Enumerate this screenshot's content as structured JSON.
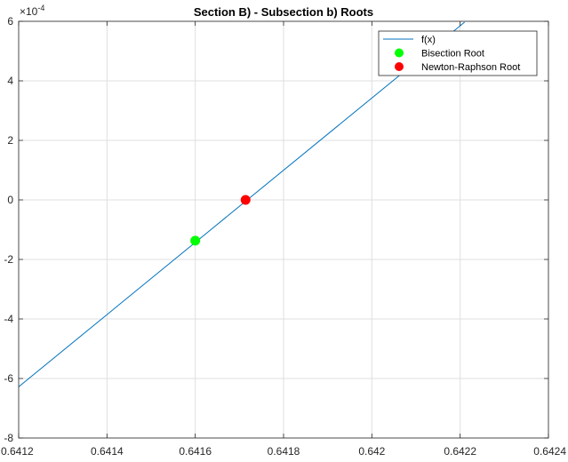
{
  "chart_data": {
    "type": "line",
    "title": "Section B) - Subsection b) Roots",
    "xlabel": "",
    "ylabel": "",
    "xlim": [
      0.6412,
      0.6424
    ],
    "ylim": [
      -0.0008,
      0.0006
    ],
    "y_multiplier": {
      "base": "×10",
      "exponent": "-4"
    },
    "x_ticks": [
      0.6412,
      0.6414,
      0.6416,
      0.6418,
      0.642,
      0.6422,
      0.6424
    ],
    "x_tick_labels": [
      "0.6412",
      "0.6414",
      "0.6416",
      "0.6418",
      "0.642",
      "0.6422",
      "0.6424"
    ],
    "y_ticks": [
      -0.0008,
      -0.0006,
      -0.0004,
      -0.0002,
      0,
      0.0002,
      0.0004,
      0.0006
    ],
    "y_tick_labels": [
      "-8",
      "-6",
      "-4",
      "-2",
      "0",
      "2",
      "4",
      "6"
    ],
    "grid": true,
    "legend_position": "top-right",
    "series": [
      {
        "name": "f(x)",
        "kind": "line",
        "color": "#0072BD",
        "x": [
          0.6412,
          0.64221
        ],
        "y": [
          -0.000628,
          0.000597
        ]
      },
      {
        "name": "Bisection Root",
        "kind": "marker",
        "color": "#00FF00",
        "x": [
          0.6416
        ],
        "y": [
          -0.000137
        ]
      },
      {
        "name": "Newton-Raphson Root",
        "kind": "marker",
        "color": "#FF0000",
        "x": [
          0.641714
        ],
        "y": [
          0
        ]
      }
    ]
  }
}
